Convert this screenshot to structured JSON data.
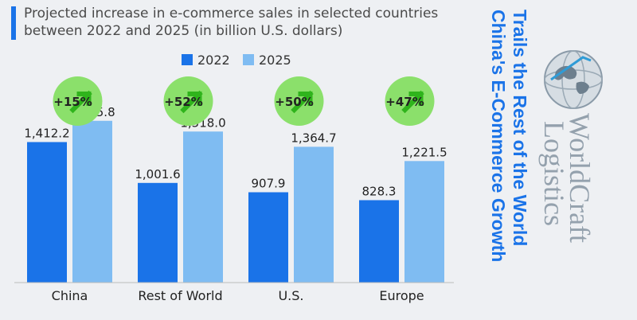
{
  "headline": {
    "line1": "China's E-Commerce Growth",
    "line2": "Trails the Rest of the World"
  },
  "logo": {
    "line1": "WorldCraft",
    "line2": "Logistics",
    "icon": "globe-icon"
  },
  "colors": {
    "series_2022": "#1a73e8",
    "series_2025": "#7fbcf2",
    "badge": "#8be06b",
    "arrow": "#2fb41c",
    "headline": "#1a73e8"
  },
  "chart_data": {
    "type": "bar",
    "title": "Projected increase in e-commerce sales in selected countries between 2022 and 2025 (in billion U.S. dollars)",
    "categories": [
      "China",
      "Rest of World",
      "U.S.",
      "Europe"
    ],
    "series": [
      {
        "name": "2022",
        "values": [
          1412.2,
          1001.6,
          907.9,
          828.3
        ],
        "labels": [
          "1,412.2",
          "1,001.6",
          "907.9",
          "828.3"
        ]
      },
      {
        "name": "2025",
        "values": [
          1625.8,
          1518.0,
          1364.7,
          1221.5
        ],
        "labels": [
          "1,625.8",
          "1,518.0",
          "1,364.7",
          "1,221.5"
        ]
      }
    ],
    "growth": [
      "+15%",
      "+52%",
      "+50%",
      "+47%"
    ],
    "ylim": [
      0,
      2000
    ],
    "legend": "top-center",
    "grid": false
  }
}
